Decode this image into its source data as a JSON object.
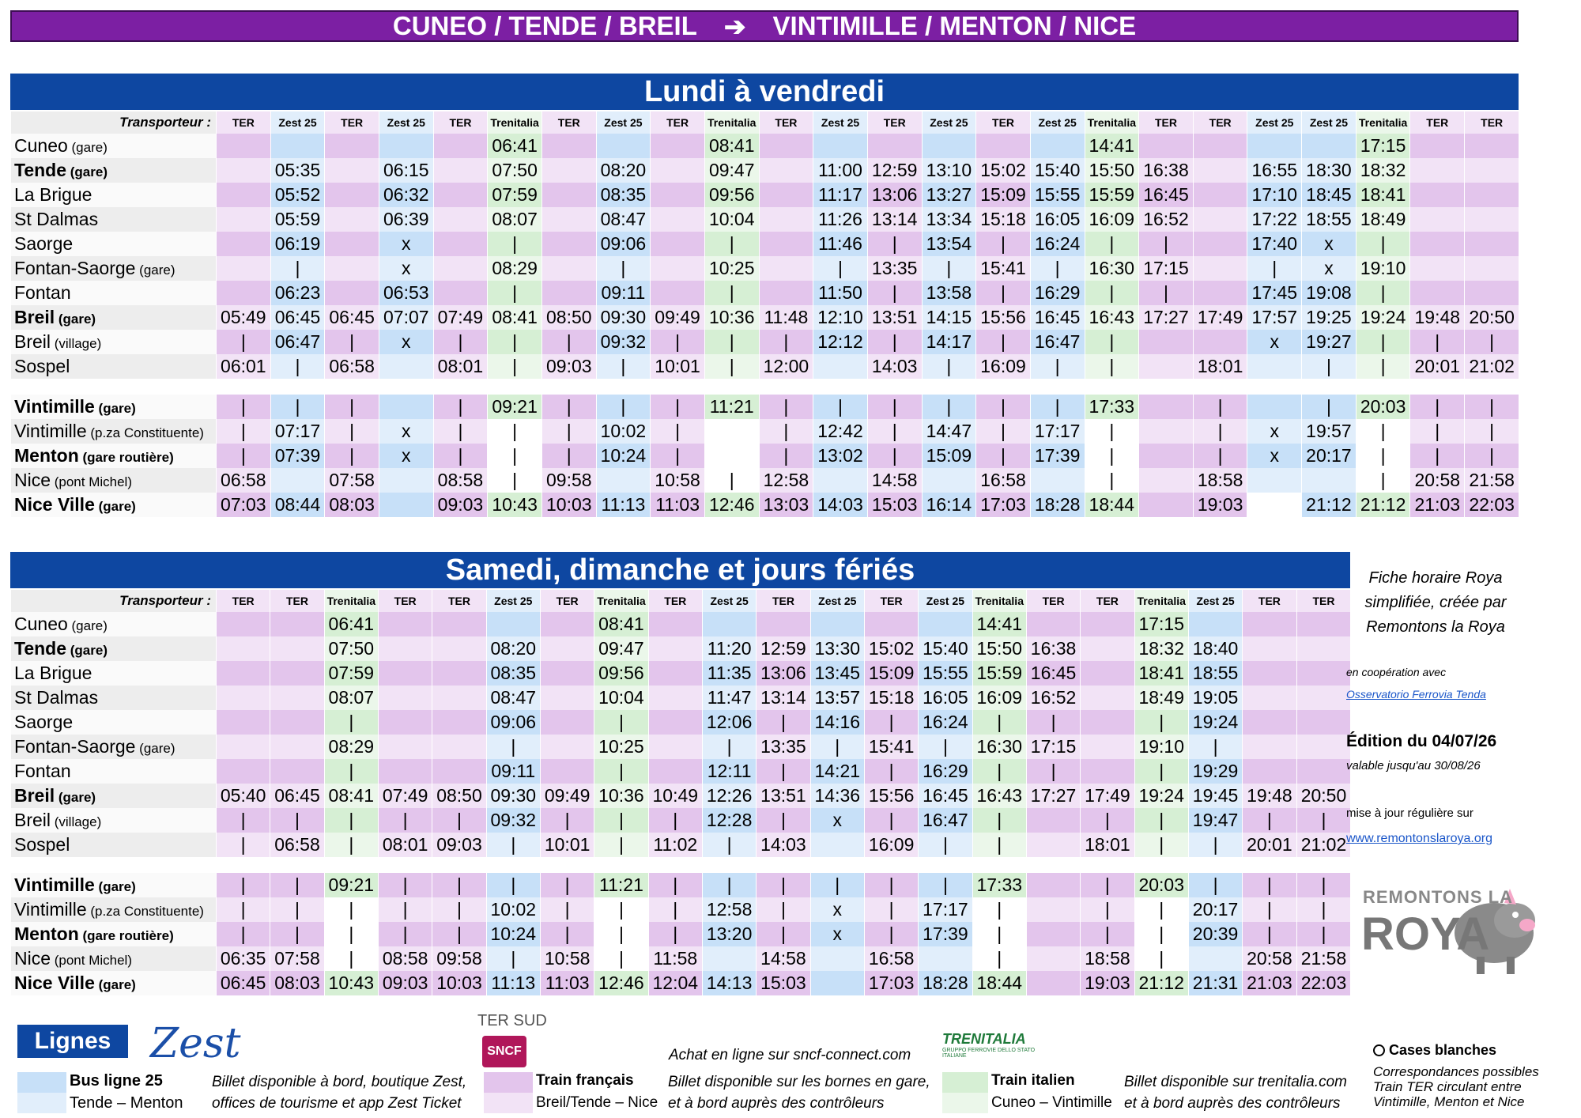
{
  "banner": {
    "left": "CUNEO / TENDE / BREIL",
    "arrow": "➔",
    "right": "VINTIMILLE / MENTON / NICE"
  },
  "colors": {
    "banner": "#7c1fa3",
    "section": "#0e47a1",
    "ter": "#e3c5ec",
    "ter_alt": "#f2e3f6",
    "zest": "#c7e0f8",
    "zest_alt": "#e1eefb",
    "trenitalia": "#d6efd4",
    "trenitalia_alt": "#ebf7ea",
    "station_a": "#ededed",
    "station_b": "#fafafa"
  },
  "weekday": {
    "title": "Lundi à vendredi",
    "transporter_label": "Transporteur :",
    "carriers": [
      "TER",
      "Zest 25",
      "TER",
      "Zest 25",
      "TER",
      "Trenitalia",
      "TER",
      "Zest 25",
      "TER",
      "Trenitalia",
      "TER",
      "Zest 25",
      "TER",
      "Zest 25",
      "TER",
      "Zest 25",
      "Trenitalia",
      "TER",
      "TER",
      "Zest 25",
      "Zest 25",
      "Trenitalia",
      "TER",
      "TER"
    ],
    "rows": [
      {
        "name": "Cuneo",
        "sub": " (gare)",
        "bold": false,
        "times": [
          "",
          "",
          "",
          "",
          "",
          "06:41",
          "",
          "",
          "",
          "08:41",
          "",
          "",
          "",
          "",
          "",
          "",
          "14:41",
          "",
          "",
          "",
          "",
          "17:15",
          "",
          ""
        ],
        "blanks": []
      },
      {
        "name": "Tende",
        "sub": " (gare)",
        "bold": true,
        "times": [
          "",
          "05:35",
          "",
          "06:15",
          "",
          "07:50",
          "",
          "08:20",
          "",
          "09:47",
          "",
          "11:00",
          "12:59",
          "13:10",
          "15:02",
          "15:40",
          "15:50",
          "16:38",
          "",
          "16:55",
          "18:30",
          "18:32",
          "",
          ""
        ],
        "blanks": []
      },
      {
        "name": "La Brigue",
        "sub": "",
        "bold": false,
        "times": [
          "",
          "05:52",
          "",
          "06:32",
          "",
          "07:59",
          "",
          "08:35",
          "",
          "09:56",
          "",
          "11:17",
          "13:06",
          "13:27",
          "15:09",
          "15:55",
          "15:59",
          "16:45",
          "",
          "17:10",
          "18:45",
          "18:41",
          "",
          ""
        ],
        "blanks": []
      },
      {
        "name": "St Dalmas",
        "sub": "",
        "bold": false,
        "times": [
          "",
          "05:59",
          "",
          "06:39",
          "",
          "08:07",
          "",
          "08:47",
          "",
          "10:04",
          "",
          "11:26",
          "13:14",
          "13:34",
          "15:18",
          "16:05",
          "16:09",
          "16:52",
          "",
          "17:22",
          "18:55",
          "18:49",
          "",
          ""
        ],
        "blanks": []
      },
      {
        "name": "Saorge",
        "sub": "",
        "bold": false,
        "times": [
          "",
          "06:19",
          "",
          "x",
          "",
          "|",
          "",
          "09:06",
          "",
          "|",
          "",
          "11:46",
          "|",
          "13:54",
          "|",
          "16:24",
          "|",
          "|",
          "",
          "17:40",
          "x",
          "|",
          "",
          ""
        ],
        "blanks": []
      },
      {
        "name": "Fontan-Saorge",
        "sub": " (gare)",
        "bold": false,
        "times": [
          "",
          "|",
          "",
          "x",
          "",
          "08:29",
          "",
          "|",
          "",
          "10:25",
          "",
          "|",
          "13:35",
          "|",
          "15:41",
          "|",
          "16:30",
          "17:15",
          "",
          "|",
          "x",
          "19:10",
          "",
          ""
        ],
        "blanks": []
      },
      {
        "name": "Fontan",
        "sub": "",
        "bold": false,
        "times": [
          "",
          "06:23",
          "",
          "06:53",
          "",
          "|",
          "",
          "09:11",
          "",
          "|",
          "",
          "11:50",
          "|",
          "13:58",
          "|",
          "16:29",
          "|",
          "|",
          "",
          "17:45",
          "19:08",
          "|",
          "",
          ""
        ],
        "blanks": []
      },
      {
        "name": "Breil",
        "sub": " (gare)",
        "bold": true,
        "times": [
          "05:49",
          "06:45",
          "06:45",
          "07:07",
          "07:49",
          "08:41",
          "08:50",
          "09:30",
          "09:49",
          "10:36",
          "11:48",
          "12:10",
          "13:51",
          "14:15",
          "15:56",
          "16:45",
          "16:43",
          "17:27",
          "17:49",
          "17:57",
          "19:25",
          "19:24",
          "19:48",
          "20:50"
        ],
        "blanks": []
      },
      {
        "name": "Breil",
        "sub": " (village)",
        "bold": false,
        "times": [
          "|",
          "06:47",
          "|",
          "x",
          "|",
          "|",
          "|",
          "09:32",
          "|",
          "|",
          "|",
          "12:12",
          "|",
          "14:17",
          "|",
          "16:47",
          "|",
          "",
          "",
          "x",
          "19:27",
          "|",
          "|",
          "|"
        ],
        "blanks": []
      },
      {
        "name": "Sospel",
        "sub": "",
        "bold": false,
        "times": [
          "06:01",
          "|",
          "06:58",
          "",
          "08:01",
          "|",
          "09:03",
          "|",
          "10:01",
          "|",
          "12:00",
          "",
          "14:03",
          "|",
          "16:09",
          "|",
          "|",
          "",
          "18:01",
          "",
          "|",
          "|",
          "20:01",
          "21:02"
        ],
        "blanks": []
      },
      {
        "gap": true
      },
      {
        "name": "Vintimille",
        "sub": " (gare)",
        "bold": true,
        "times": [
          "|",
          "|",
          "|",
          "",
          "|",
          "09:21",
          "|",
          "|",
          "|",
          "11:21",
          "|",
          "|",
          "|",
          "|",
          "|",
          "|",
          "17:33",
          "",
          "|",
          "",
          "|",
          "20:03",
          "|",
          "|"
        ],
        "blanks": []
      },
      {
        "name": "Vintimille",
        "sub": " (p.za Constituente)",
        "bold": false,
        "times": [
          "|",
          "07:17",
          "|",
          "x",
          "|",
          "|",
          "|",
          "10:02",
          "|",
          "",
          "|",
          "12:42",
          "|",
          "14:47",
          "|",
          "17:17",
          "|",
          "",
          "|",
          "x",
          "19:57",
          "|",
          "|",
          "|"
        ],
        "blanks": [
          5,
          9,
          16,
          21
        ]
      },
      {
        "name": "Menton",
        "sub": " (gare routière)",
        "bold": true,
        "times": [
          "|",
          "07:39",
          "|",
          "x",
          "|",
          "|",
          "|",
          "10:24",
          "|",
          "",
          "|",
          "13:02",
          "|",
          "15:09",
          "|",
          "17:39",
          "|",
          "",
          "|",
          "x",
          "20:17",
          "|",
          "|",
          "|"
        ],
        "blanks": [
          5,
          9,
          16,
          21
        ]
      },
      {
        "name": "Nice",
        "sub": " (pont Michel)",
        "bold": false,
        "times": [
          "06:58",
          "",
          "07:58",
          "",
          "08:58",
          "|",
          "09:58",
          "",
          "10:58",
          "|",
          "12:58",
          "",
          "14:58",
          "",
          "16:58",
          "",
          "|",
          "",
          "18:58",
          "",
          "",
          "|",
          "20:58",
          "21:58"
        ],
        "blanks": [
          5,
          9,
          16,
          21
        ]
      },
      {
        "name": "Nice Ville",
        "sub": " (gare)",
        "bold": true,
        "times": [
          "07:03",
          "08:44",
          "08:03",
          "",
          "09:03",
          "10:43",
          "10:03",
          "11:13",
          "11:03",
          "12:46",
          "13:03",
          "14:03",
          "15:03",
          "16:14",
          "17:03",
          "18:28",
          "18:44",
          "",
          "19:03",
          "",
          "21:12",
          "21:12",
          "21:03",
          "22:03"
        ],
        "blanks": [
          19
        ]
      }
    ]
  },
  "weekend": {
    "title": "Samedi, dimanche et jours fériés",
    "transporter_label": "Transporteur :",
    "carriers": [
      "TER",
      "TER",
      "Trenitalia",
      "TER",
      "TER",
      "Zest 25",
      "TER",
      "Trenitalia",
      "TER",
      "Zest 25",
      "TER",
      "Zest 25",
      "TER",
      "Zest 25",
      "Trenitalia",
      "TER",
      "TER",
      "Trenitalia",
      "Zest 25",
      "TER",
      "TER"
    ],
    "rows": [
      {
        "name": "Cuneo",
        "sub": " (gare)",
        "bold": false,
        "times": [
          "",
          "",
          "06:41",
          "",
          "",
          "",
          "",
          "08:41",
          "",
          "",
          "",
          "",
          "",
          "",
          "14:41",
          "",
          "",
          "17:15",
          "",
          "",
          ""
        ],
        "blanks": []
      },
      {
        "name": "Tende",
        "sub": " (gare)",
        "bold": true,
        "times": [
          "",
          "",
          "07:50",
          "",
          "",
          "08:20",
          "",
          "09:47",
          "",
          "11:20",
          "12:59",
          "13:30",
          "15:02",
          "15:40",
          "15:50",
          "16:38",
          "",
          "18:32",
          "18:40",
          "",
          ""
        ],
        "blanks": []
      },
      {
        "name": "La Brigue",
        "sub": "",
        "bold": false,
        "times": [
          "",
          "",
          "07:59",
          "",
          "",
          "08:35",
          "",
          "09:56",
          "",
          "11:35",
          "13:06",
          "13:45",
          "15:09",
          "15:55",
          "15:59",
          "16:45",
          "",
          "18:41",
          "18:55",
          "",
          ""
        ],
        "blanks": []
      },
      {
        "name": "St Dalmas",
        "sub": "",
        "bold": false,
        "times": [
          "",
          "",
          "08:07",
          "",
          "",
          "08:47",
          "",
          "10:04",
          "",
          "11:47",
          "13:14",
          "13:57",
          "15:18",
          "16:05",
          "16:09",
          "16:52",
          "",
          "18:49",
          "19:05",
          "",
          ""
        ],
        "blanks": []
      },
      {
        "name": "Saorge",
        "sub": "",
        "bold": false,
        "times": [
          "",
          "",
          "|",
          "",
          "",
          "09:06",
          "",
          "|",
          "",
          "12:06",
          "|",
          "14:16",
          "|",
          "16:24",
          "|",
          "|",
          "",
          "|",
          "19:24",
          "",
          ""
        ],
        "blanks": []
      },
      {
        "name": "Fontan-Saorge",
        "sub": " (gare)",
        "bold": false,
        "times": [
          "",
          "",
          "08:29",
          "",
          "",
          "|",
          "",
          "10:25",
          "",
          "|",
          "13:35",
          "|",
          "15:41",
          "|",
          "16:30",
          "17:15",
          "",
          "19:10",
          "|",
          "",
          ""
        ],
        "blanks": []
      },
      {
        "name": "Fontan",
        "sub": "",
        "bold": false,
        "times": [
          "",
          "",
          "|",
          "",
          "",
          "09:11",
          "",
          "|",
          "",
          "12:11",
          "|",
          "14:21",
          "|",
          "16:29",
          "|",
          "|",
          "",
          "|",
          "19:29",
          "",
          ""
        ],
        "blanks": []
      },
      {
        "name": "Breil",
        "sub": " (gare)",
        "bold": true,
        "times": [
          "05:40",
          "06:45",
          "08:41",
          "07:49",
          "08:50",
          "09:30",
          "09:49",
          "10:36",
          "10:49",
          "12:26",
          "13:51",
          "14:36",
          "15:56",
          "16:45",
          "16:43",
          "17:27",
          "17:49",
          "19:24",
          "19:45",
          "19:48",
          "20:50"
        ],
        "blanks": []
      },
      {
        "name": "Breil",
        "sub": " (village)",
        "bold": false,
        "times": [
          "|",
          "|",
          "|",
          "|",
          "|",
          "09:32",
          "|",
          "|",
          "|",
          "12:28",
          "|",
          "x",
          "|",
          "16:47",
          "|",
          "",
          "|",
          "|",
          "19:47",
          "|",
          "|"
        ],
        "blanks": []
      },
      {
        "name": "Sospel",
        "sub": "",
        "bold": false,
        "times": [
          "|",
          "06:58",
          "|",
          "08:01",
          "09:03",
          "|",
          "10:01",
          "|",
          "11:02",
          "|",
          "14:03",
          "",
          "16:09",
          "|",
          "|",
          "",
          "18:01",
          "|",
          "|",
          "20:01",
          "21:02"
        ],
        "blanks": []
      },
      {
        "gap": true
      },
      {
        "name": "Vintimille",
        "sub": " (gare)",
        "bold": true,
        "times": [
          "|",
          "|",
          "09:21",
          "|",
          "|",
          "|",
          "|",
          "11:21",
          "|",
          "|",
          "|",
          "|",
          "|",
          "|",
          "17:33",
          "",
          "|",
          "20:03",
          "|",
          "|",
          "|"
        ],
        "blanks": []
      },
      {
        "name": "Vintimille",
        "sub": " (p.za Constituente)",
        "bold": false,
        "times": [
          "|",
          "|",
          "|",
          "|",
          "|",
          "10:02",
          "|",
          "|",
          "|",
          "12:58",
          "|",
          "x",
          "|",
          "17:17",
          "|",
          "",
          "|",
          "|",
          "20:17",
          "|",
          "|"
        ],
        "blanks": [
          2,
          7,
          14,
          17
        ]
      },
      {
        "name": "Menton",
        "sub": " (gare routière)",
        "bold": true,
        "times": [
          "|",
          "|",
          "|",
          "|",
          "|",
          "10:24",
          "|",
          "|",
          "|",
          "13:20",
          "|",
          "x",
          "|",
          "17:39",
          "|",
          "",
          "|",
          "|",
          "20:39",
          "|",
          "|"
        ],
        "blanks": [
          2,
          7,
          14,
          17
        ]
      },
      {
        "name": "Nice",
        "sub": " (pont Michel)",
        "bold": false,
        "times": [
          "06:35",
          "07:58",
          "|",
          "08:58",
          "09:58",
          "|",
          "10:58",
          "|",
          "11:58",
          "",
          "14:58",
          "",
          "16:58",
          "",
          "|",
          "",
          "18:58",
          "|",
          "",
          "20:58",
          "21:58"
        ],
        "blanks": [
          2,
          7,
          14,
          17
        ]
      },
      {
        "name": "Nice Ville",
        "sub": " (gare)",
        "bold": true,
        "times": [
          "06:45",
          "08:03",
          "10:43",
          "09:03",
          "10:03",
          "11:13",
          "11:03",
          "12:46",
          "12:04",
          "14:13",
          "15:03",
          "",
          "17:03",
          "18:28",
          "18:44",
          "",
          "19:03",
          "21:12",
          "21:31",
          "21:03",
          "22:03"
        ],
        "blanks": []
      }
    ]
  },
  "side": {
    "intro_1": "Fiche horaire Roya",
    "intro_2": "simplifiée, créée par",
    "intro_3": "Remontons la Roya",
    "coop": "en coopération avec",
    "coop_link": "Osservatorio Ferrovia Tenda",
    "edition": "Édition du 04/07/26",
    "valid": "valable jusqu'au 30/08/26",
    "update": "mise à jour régulière sur",
    "site": "www.remontonslaroya.org",
    "logo_line1": "REMONTONS LA",
    "logo_line2": "ROYA"
  },
  "legend": {
    "lines_title": "Lignes",
    "zest_logo": "Zest",
    "ter_sud": "TER SUD",
    "sncf_logo": "SNCF",
    "online": "Achat en ligne sur sncf-connect.com",
    "trenitalia_logo": "TRENITALIA",
    "trenitalia_sub": "GRUPPO FERROVIE DELLO STATO ITALIANE",
    "bus_title": "Bus ligne 25",
    "bus_sub": "Tende – Menton",
    "bus_info_1": "Billet disponible à bord, boutique Zest,",
    "bus_info_2": "offices de tourisme et app Zest Ticket",
    "ter_title": "Train français",
    "ter_sub": "Breil/Tende – Nice",
    "ter_info_1": "Billet disponible sur les bornes en gare,",
    "ter_info_2": "et à bord auprès des contrôleurs",
    "it_title": "Train italien",
    "it_sub": "Cuneo – Vintimille",
    "it_info_1": "Billet disponible sur trenitalia.com",
    "it_info_2": "et à bord auprès des contrôleurs",
    "blank_title": "Cases blanches",
    "blank_1": "Correspondances possibles",
    "blank_2": "Train TER circulant entre",
    "blank_3": "Vintimille, Menton et Nice"
  }
}
